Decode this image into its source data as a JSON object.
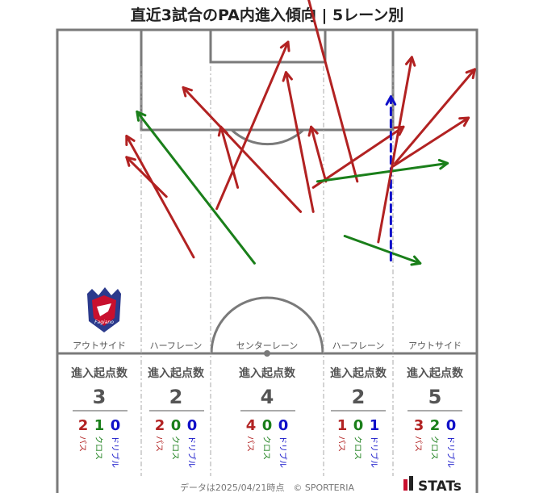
{
  "title": "直近3試合のPA内進入傾向 | 5レーン別",
  "lane_labels": [
    "アウトサイド",
    "ハーフレーン",
    "センターレーン",
    "ハーフレーン",
    "アウトサイド"
  ],
  "stat_header": "進入起点数",
  "type_labels": {
    "pass": "パス",
    "cross": "クロス",
    "dribble": "ドリブル"
  },
  "footer": {
    "note": "データは2025/04/21時点　© SPORTERIA",
    "brand": "STATs"
  },
  "colors": {
    "pass": "#b22222",
    "cross": "#1a7f1a",
    "dribble": "#1010c8",
    "pitch_line": "#7a7a7a",
    "lane_divider": "#a8a8a8",
    "text": "#222222"
  },
  "chart_data": {
    "type": "arrow-map",
    "title": "直近3試合のPA内進入傾向 | 5レーン別",
    "lanes": [
      {
        "name": "アウトサイド",
        "total": 3,
        "pass": 2,
        "cross": 1,
        "dribble": 0
      },
      {
        "name": "ハーフレーン",
        "total": 2,
        "pass": 2,
        "cross": 0,
        "dribble": 0
      },
      {
        "name": "センターレーン",
        "total": 4,
        "pass": 4,
        "cross": 0,
        "dribble": 0
      },
      {
        "name": "ハーフレーン",
        "total": 2,
        "pass": 1,
        "cross": 0,
        "dribble": 1
      },
      {
        "name": "アウトサイド",
        "total": 5,
        "pass": 3,
        "cross": 2,
        "dribble": 0
      }
    ],
    "arrows": [
      {
        "type": "pass",
        "start": [
          16.5,
          17.5
        ],
        "end": [
          32.5,
          37.5
        ]
      },
      {
        "type": "pass",
        "start": [
          16.5,
          21.0
        ],
        "end": [
          26.0,
          27.5
        ]
      },
      {
        "type": "cross",
        "start": [
          19.0,
          13.5
        ],
        "end": [
          47.0,
          38.5
        ]
      },
      {
        "type": "pass",
        "start": [
          30.0,
          9.5
        ],
        "end": [
          58.0,
          30.0
        ]
      },
      {
        "type": "pass",
        "start": [
          39.0,
          16.0
        ],
        "end": [
          43.0,
          26.0
        ]
      },
      {
        "type": "pass",
        "start": [
          55.0,
          2.0
        ],
        "end": [
          38.0,
          29.5
        ]
      },
      {
        "type": "pass",
        "start": [
          54.5,
          7.0
        ],
        "end": [
          61.0,
          30.0
        ]
      },
      {
        "type": "pass",
        "start": [
          60.5,
          16.0
        ],
        "end": [
          64.0,
          25.0
        ]
      },
      {
        "type": "pass",
        "start": [
          57.0,
          -12.5
        ],
        "end": [
          71.5,
          25.0
        ]
      },
      {
        "type": "pass",
        "start": [
          82.5,
          16.0
        ],
        "end": [
          61.0,
          26.0
        ]
      },
      {
        "type": "cross",
        "start": [
          93.0,
          22.0
        ],
        "end": [
          62.0,
          25.0
        ]
      },
      {
        "type": "cross",
        "start": [
          86.5,
          38.5
        ],
        "end": [
          68.5,
          34.0
        ]
      },
      {
        "type": "dribble",
        "start": [
          79.5,
          11.0
        ],
        "end": [
          79.5,
          38.0
        ]
      },
      {
        "type": "pass",
        "start": [
          84.5,
          4.5
        ],
        "end": [
          76.5,
          35.0
        ]
      },
      {
        "type": "pass",
        "start": [
          98.0,
          14.5
        ],
        "end": [
          80.0,
          22.5
        ]
      },
      {
        "type": "pass",
        "start": [
          99.5,
          6.5
        ],
        "end": [
          80.5,
          22.0
        ]
      }
    ]
  }
}
